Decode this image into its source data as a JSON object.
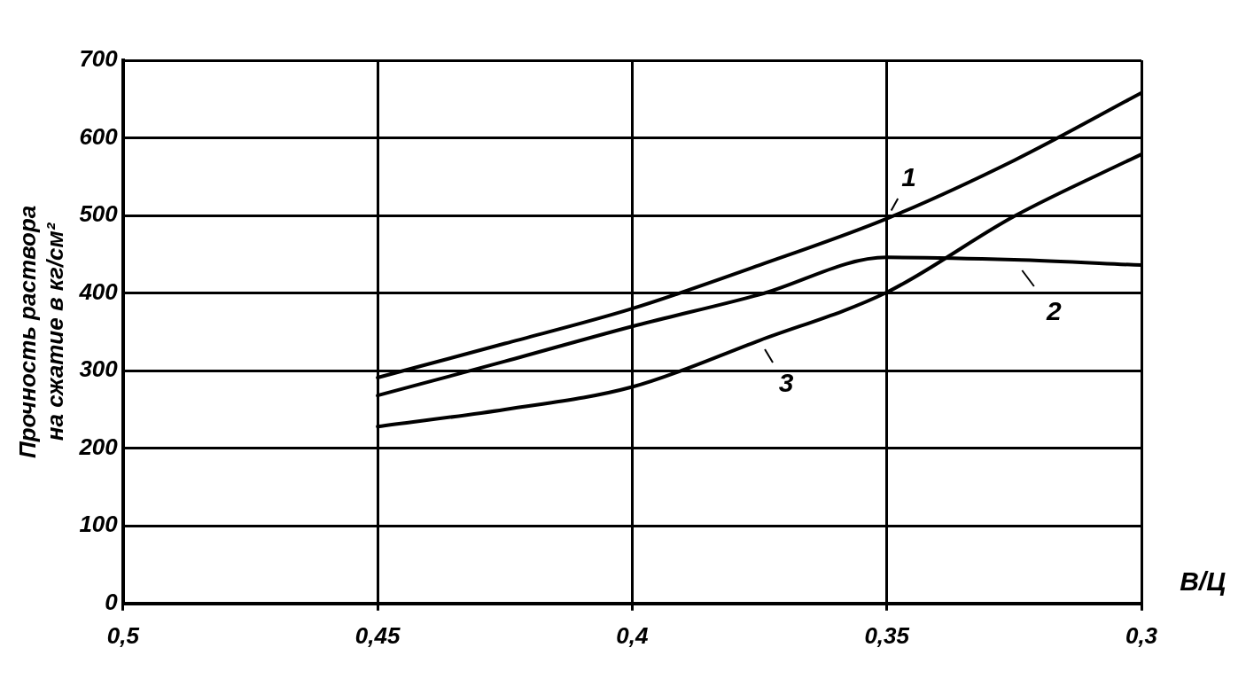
{
  "chart_data": {
    "type": "line",
    "xlabel": "В/Ц",
    "ylabel": "Прочность раствора\nна сжатие в кг/см²",
    "xlim": [
      0.5,
      0.3
    ],
    "xticks": [
      {
        "value": 0.5,
        "label": "0,5"
      },
      {
        "value": 0.45,
        "label": "0,45"
      },
      {
        "value": 0.4,
        "label": "0,4"
      },
      {
        "value": 0.35,
        "label": "0,35"
      },
      {
        "value": 0.3,
        "label": "0,3"
      }
    ],
    "ylim": [
      0,
      700
    ],
    "yticks": [
      0,
      100,
      200,
      300,
      400,
      500,
      600,
      700
    ],
    "grid": true,
    "legend": "right",
    "marker": "none",
    "line_style": "solid",
    "series": [
      {
        "name": "1",
        "color": "#000000",
        "x": [
          0.45,
          0.425,
          0.4,
          0.375,
          0.35,
          0.325,
          0.3
        ],
        "values": [
          291,
          335,
          380,
          436,
          496,
          571,
          658
        ]
      },
      {
        "name": "2",
        "color": "#000000",
        "x": [
          0.45,
          0.425,
          0.4,
          0.375,
          0.35,
          0.325,
          0.3
        ],
        "values": [
          268,
          312,
          357,
          398,
          446,
          443,
          436
        ]
      },
      {
        "name": "3",
        "color": "#000000",
        "x": [
          0.45,
          0.425,
          0.4,
          0.375,
          0.35,
          0.325,
          0.3
        ],
        "values": [
          228,
          250,
          279,
          339,
          401,
          499,
          579
        ]
      }
    ]
  }
}
